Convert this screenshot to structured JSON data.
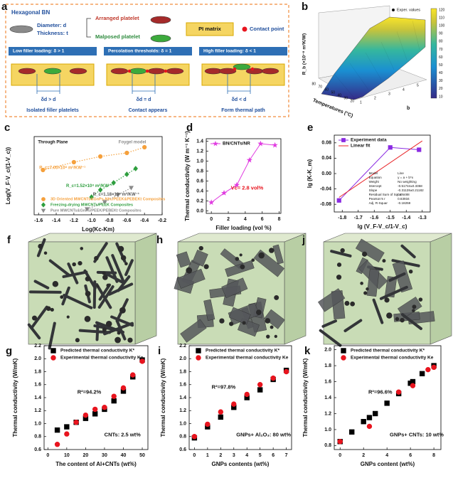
{
  "schematic": {
    "label": "a",
    "title": "Hexagonal BN",
    "diameter": "Diameter: d",
    "thickness": "Thickness: t",
    "arranged": "Arranged platelet",
    "malposed": "Malposed platelet",
    "matrix": "PI matrix",
    "contact": "Contact point",
    "stages": [
      {
        "header": "Low filler loading: δ > 1",
        "relation": "δd > d",
        "caption": "Isolated filler platelets"
      },
      {
        "header": "Percolation thresholds: δ = 1",
        "relation": "δd = d",
        "caption": "Contact appears"
      },
      {
        "header": "High filler loading: δ < 1",
        "relation": "δd < d",
        "caption": "Form thermal path"
      }
    ]
  },
  "surface": {
    "label": "b",
    "z_label": "R_b (×10⁻⁸ m²K/W)",
    "x_label": "Temperatures (°C)",
    "y_label": "b",
    "legend": "Exper. values",
    "x_ticks": [
      "80",
      "70",
      "60",
      "50",
      "40",
      "30",
      "20"
    ],
    "y_ticks": [
      "1",
      "2",
      "3",
      "4",
      "5"
    ],
    "colorbar_ticks": [
      "120",
      "110",
      "100",
      "90",
      "80",
      "70",
      "60",
      "50",
      "40",
      "30",
      "20",
      "10"
    ]
  },
  "models": [
    {
      "label": "f"
    },
    {
      "label": "h"
    },
    {
      "label": "j"
    }
  ],
  "chart_data": [
    {
      "type": "scatter",
      "label": "c",
      "xlabel": "Log(Kc-Km)",
      "ylabel": "Log(V_F·V_c/(1-V_c))",
      "xlim": [
        -1.65,
        -0.2
      ],
      "ylim": [
        0,
        11
      ],
      "xticks": [
        -1.6,
        -1.4,
        -1.2,
        {
          "value": -1,
          "label": "-1.0"
        },
        -0.8,
        -0.6,
        -0.4,
        -0.2
      ],
      "legend": "lower left",
      "annotations": [
        "Through Plane",
        "Foygel model",
        "R_c=7.05×10⁸ m²/KW⁻¹",
        "R_c=1.52×10⁸ m²/KW⁻¹",
        "R_c=1.18×10⁸ m²/KW⁻¹"
      ],
      "series": [
        {
          "name": "3D Oriented MWCNTs&GnPs-NH₂/PEEK&PEBEKt Composites",
          "color": "#f5a03c",
          "marker": "circle",
          "line": "dotted",
          "x": [
            -1.55,
            -1.2,
            -0.9,
            -0.6,
            -0.4
          ],
          "values": [
            6.3,
            7.4,
            8.2,
            8.7,
            9.5
          ]
        },
        {
          "name": "Freezing-drying MWCNTs/PEEK Composites",
          "color": "#2e9e3e",
          "marker": "diamond",
          "line": "dotted",
          "x": [
            -1.0,
            -0.9,
            -0.75,
            -0.6,
            -0.5
          ],
          "values": [
            2.5,
            3.5,
            4.5,
            5.7,
            6.5
          ]
        },
        {
          "name": "Pure MWCNTs&GnPs/PEEK/PEBEKt Composites",
          "color": "#8a8a8a",
          "marker": "triangle",
          "line": "dotted",
          "x": [
            -1.05,
            -0.85,
            -0.7,
            -0.55
          ],
          "values": [
            0.8,
            1.8,
            2.8,
            3.8
          ]
        }
      ]
    },
    {
      "type": "line",
      "label": "d",
      "xlabel": "Filler loading (vol %)",
      "ylabel": "Thermal conductivity (W m⁻¹ K⁻¹)",
      "xlim": [
        -0.6,
        8.2
      ],
      "ylim": [
        -0.05,
        1.45
      ],
      "xticks": [
        0,
        2,
        4,
        6,
        8
      ],
      "yticks": [
        {
          "value": 0,
          "label": "0.0"
        },
        0.2,
        0.4,
        0.6,
        0.8,
        {
          "value": 1,
          "label": "1.0"
        },
        1.2,
        1.4
      ],
      "legend": "upper left",
      "annotations": [
        "Vc= 2.8 vol%"
      ],
      "series": [
        {
          "name": "BN/CNTs/NR",
          "color": "#e03ce0",
          "marker": "star",
          "line": "solid",
          "x": [
            0,
            1.5,
            3,
            4.5,
            5.8,
            7.5
          ],
          "values": [
            0.17,
            0.36,
            0.52,
            1.02,
            1.35,
            1.32
          ]
        }
      ]
    },
    {
      "type": "line",
      "label": "e",
      "xlabel": "lg (V_F-V_c/1-V_c)",
      "ylabel": "lg (K-K_m)",
      "xlim": [
        -1.85,
        -1.25
      ],
      "ylim": [
        -0.1,
        0.1
      ],
      "xticks": [
        -1.8,
        -1.7,
        -1.6,
        -1.5,
        -1.4,
        -1.3
      ],
      "yticks": [
        0.08,
        0.04,
        {
          "value": 0,
          "label": "0.00"
        },
        -0.04,
        -0.08
      ],
      "legend": "upper left",
      "table": [
        [
          "Model",
          "Line"
        ],
        [
          "Equation",
          "y = a + b*x"
        ],
        [
          "Weight",
          "No weighting"
        ],
        [
          "Intercept",
          "-0.51744±0.3358"
        ],
        [
          "Slope",
          "-0.31128±0.21182"
        ],
        [
          "Residual Sum of Squa",
          "0.05488"
        ],
        [
          "Pearson's r",
          "0.63934"
        ],
        [
          "Adj. R-Squar",
          "-0.18259"
        ]
      ],
      "series": [
        {
          "name": "Experiment data",
          "color": "#8a2be2",
          "marker": "square",
          "line": "solid",
          "x": [
            -1.82,
            -1.5,
            -1.32
          ],
          "values": [
            -0.07,
            0.068,
            0.062
          ]
        },
        {
          "name": "Linear fit",
          "color": "#e8262a",
          "marker": "none",
          "line": "solid",
          "x": [
            -1.82,
            -1.3
          ],
          "values": [
            -0.062,
            0.085
          ]
        }
      ]
    },
    {
      "type": "scatter",
      "label": "g",
      "xlabel": "The content of Al+CNTs (wt%)",
      "ylabel": "Thermal conductivity (W/mK)",
      "xlim": [
        -2,
        53
      ],
      "ylim": [
        0.6,
        2.2
      ],
      "xticks": [
        0,
        10,
        20,
        30,
        40,
        50
      ],
      "yticks": [
        0.6,
        0.8,
        {
          "value": 1,
          "label": "1.0"
        },
        1.2,
        1.4,
        1.6,
        1.8,
        {
          "value": 2,
          "label": "2.0"
        },
        2.2
      ],
      "legend": "upper left",
      "annotations": [
        "R²=94.2%",
        "CNTs: 2.5 wt%"
      ],
      "series": [
        {
          "name": "Predicted thermal conductivity K*",
          "color": "#000000",
          "marker": "square",
          "line": "none",
          "x": [
            5,
            10,
            15,
            20,
            25,
            30,
            35,
            40,
            45,
            50
          ],
          "values": [
            0.9,
            0.95,
            1.02,
            1.08,
            1.15,
            1.22,
            1.35,
            1.5,
            1.72,
            1.98
          ]
        },
        {
          "name": "Experimental thermal conductivity Ke",
          "color": "#e8141e",
          "marker": "circle",
          "line": "none",
          "x": [
            5,
            10,
            15,
            20,
            25,
            30,
            35,
            40,
            45,
            50
          ],
          "values": [
            0.68,
            0.84,
            1.02,
            1.13,
            1.22,
            1.25,
            1.42,
            1.55,
            1.75,
            1.96
          ]
        }
      ]
    },
    {
      "type": "scatter",
      "label": "i",
      "xlabel": "GNPs contents (wt%)",
      "ylabel": "Thermal conductivity (W/mK)",
      "xlim": [
        -0.4,
        7.4
      ],
      "ylim": [
        0.6,
        2.2
      ],
      "xticks": [
        0,
        1,
        2,
        3,
        4,
        5,
        6,
        7
      ],
      "yticks": [
        0.6,
        0.8,
        {
          "value": 1,
          "label": "1.0"
        },
        1.2,
        1.4,
        1.6,
        1.8,
        {
          "value": 2,
          "label": "2.0"
        },
        2.2
      ],
      "legend": "upper left",
      "annotations": [
        "R²=97.8%",
        "GNPs+ Al₂O₃: 80 wt%"
      ],
      "series": [
        {
          "name": "Predicted thermal conductivity K*",
          "color": "#000000",
          "marker": "square",
          "line": "none",
          "x": [
            0,
            1,
            2,
            3,
            4,
            5,
            6,
            7
          ],
          "values": [
            0.78,
            0.95,
            1.1,
            1.25,
            1.4,
            1.52,
            1.68,
            1.82
          ]
        },
        {
          "name": "Experimental thermal conductivity Ke",
          "color": "#e8141e",
          "marker": "circle",
          "line": "none",
          "x": [
            0,
            1,
            2,
            3,
            4,
            5,
            6,
            7
          ],
          "values": [
            0.8,
            0.99,
            1.18,
            1.3,
            1.45,
            1.6,
            1.7,
            1.8
          ]
        }
      ]
    },
    {
      "type": "scatter",
      "label": "k",
      "xlabel": "GNPs content (wt%)",
      "ylabel": "Thermal conductivity (W/mK)",
      "xlim": [
        -0.5,
        8.6
      ],
      "ylim": [
        0.75,
        2.05
      ],
      "xticks": [
        0,
        2,
        4,
        6,
        8
      ],
      "yticks": [
        0.8,
        {
          "value": 1,
          "label": "1.0"
        },
        1.2,
        1.4,
        1.6,
        1.8,
        {
          "value": 2,
          "label": "2.0"
        }
      ],
      "legend": "upper left",
      "annotations": [
        "R²=96.6%",
        "GNPs+ CNTs: 10 wt%"
      ],
      "series": [
        {
          "name": "Predicted thermal conductivity K*",
          "color": "#000000",
          "marker": "square",
          "line": "none",
          "x": [
            0,
            1,
            2,
            2.5,
            3,
            4,
            5,
            6,
            6.2,
            7,
            8
          ],
          "values": [
            0.85,
            0.97,
            1.1,
            1.15,
            1.2,
            1.33,
            1.45,
            1.58,
            1.6,
            1.7,
            1.8
          ]
        },
        {
          "name": "Experimental thermal conductivity Ke",
          "color": "#e8141e",
          "marker": "circle",
          "line": "none",
          "x": [
            0,
            2.5,
            5,
            6.2,
            7.5,
            8
          ],
          "values": [
            0.85,
            1.04,
            1.47,
            1.55,
            1.75,
            1.78
          ]
        }
      ]
    }
  ]
}
